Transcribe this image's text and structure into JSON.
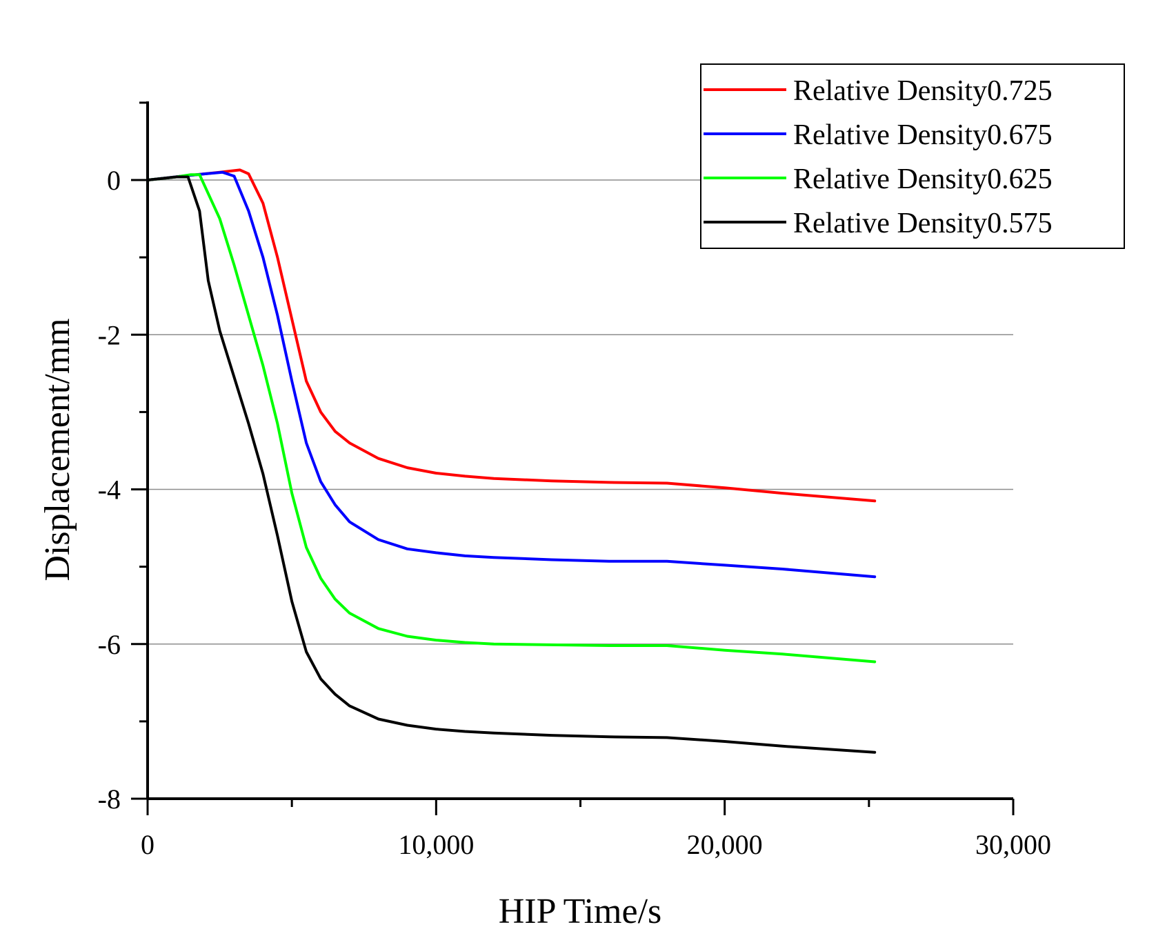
{
  "chart_data": {
    "type": "line",
    "title": "",
    "xlabel": "HIP Time/s",
    "ylabel": "Displacement/mm",
    "xlim": [
      0,
      30000
    ],
    "ylim": [
      -8,
      1
    ],
    "xticks": [
      0,
      10000,
      20000,
      30000
    ],
    "xtick_labels": [
      "0",
      "10,000",
      "20,000",
      "30,000"
    ],
    "yticks": [
      0,
      -2,
      -4,
      -6,
      -8
    ],
    "ytick_labels": [
      "0",
      "-2",
      "-4",
      "-6",
      "-8"
    ],
    "grid": "horizontal at y = 0, -2, -4, -6",
    "legend_position": "top-right",
    "series": [
      {
        "name": "Relative Density0.725",
        "color": "#ff0000",
        "x": [
          0,
          1200,
          2500,
          3200,
          3500,
          4000,
          4500,
          5000,
          5500,
          6000,
          6500,
          7000,
          8000,
          9000,
          10000,
          11000,
          12000,
          14000,
          16000,
          18000,
          20000,
          22000,
          25200
        ],
        "y": [
          0,
          0.05,
          0.1,
          0.13,
          0.08,
          -0.3,
          -1.0,
          -1.8,
          -2.6,
          -3.0,
          -3.25,
          -3.4,
          -3.6,
          -3.72,
          -3.79,
          -3.83,
          -3.86,
          -3.89,
          -3.91,
          -3.92,
          -3.98,
          -4.05,
          -4.15
        ]
      },
      {
        "name": "Relative Density0.675",
        "color": "#0000ff",
        "x": [
          0,
          1200,
          2000,
          2600,
          3000,
          3500,
          4000,
          4500,
          5000,
          5500,
          6000,
          6500,
          7000,
          8000,
          9000,
          10000,
          11000,
          12000,
          14000,
          16000,
          18000,
          20000,
          22000,
          25200
        ],
        "y": [
          0,
          0.05,
          0.08,
          0.1,
          0.05,
          -0.4,
          -1.0,
          -1.75,
          -2.6,
          -3.4,
          -3.9,
          -4.2,
          -4.42,
          -4.65,
          -4.77,
          -4.82,
          -4.86,
          -4.88,
          -4.91,
          -4.93,
          -4.93,
          -4.98,
          -5.03,
          -5.13
        ]
      },
      {
        "name": "Relative Density0.625",
        "color": "#00ff00",
        "x": [
          0,
          1000,
          1500,
          1800,
          2500,
          3000,
          3500,
          4000,
          4500,
          5000,
          5500,
          6000,
          6500,
          7000,
          8000,
          9000,
          10000,
          11000,
          12000,
          14000,
          16000,
          18000,
          20000,
          22000,
          25200
        ],
        "y": [
          0,
          0.04,
          0.07,
          0.07,
          -0.5,
          -1.1,
          -1.75,
          -2.4,
          -3.15,
          -4.05,
          -4.75,
          -5.15,
          -5.42,
          -5.6,
          -5.8,
          -5.9,
          -5.95,
          -5.98,
          -6.0,
          -6.01,
          -6.02,
          -6.02,
          -6.08,
          -6.13,
          -6.23
        ]
      },
      {
        "name": "Relative Density0.575",
        "color": "#000000",
        "x": [
          0,
          1000,
          1400,
          1800,
          2100,
          2500,
          3000,
          3500,
          4000,
          4500,
          5000,
          5500,
          6000,
          6500,
          7000,
          8000,
          9000,
          10000,
          11000,
          12000,
          14000,
          16000,
          18000,
          20000,
          22000,
          25200
        ],
        "y": [
          0,
          0.04,
          0.04,
          -0.4,
          -1.3,
          -1.95,
          -2.55,
          -3.15,
          -3.8,
          -4.6,
          -5.45,
          -6.1,
          -6.45,
          -6.65,
          -6.8,
          -6.97,
          -7.05,
          -7.1,
          -7.13,
          -7.15,
          -7.18,
          -7.2,
          -7.21,
          -7.26,
          -7.32,
          -7.4
        ]
      }
    ]
  }
}
